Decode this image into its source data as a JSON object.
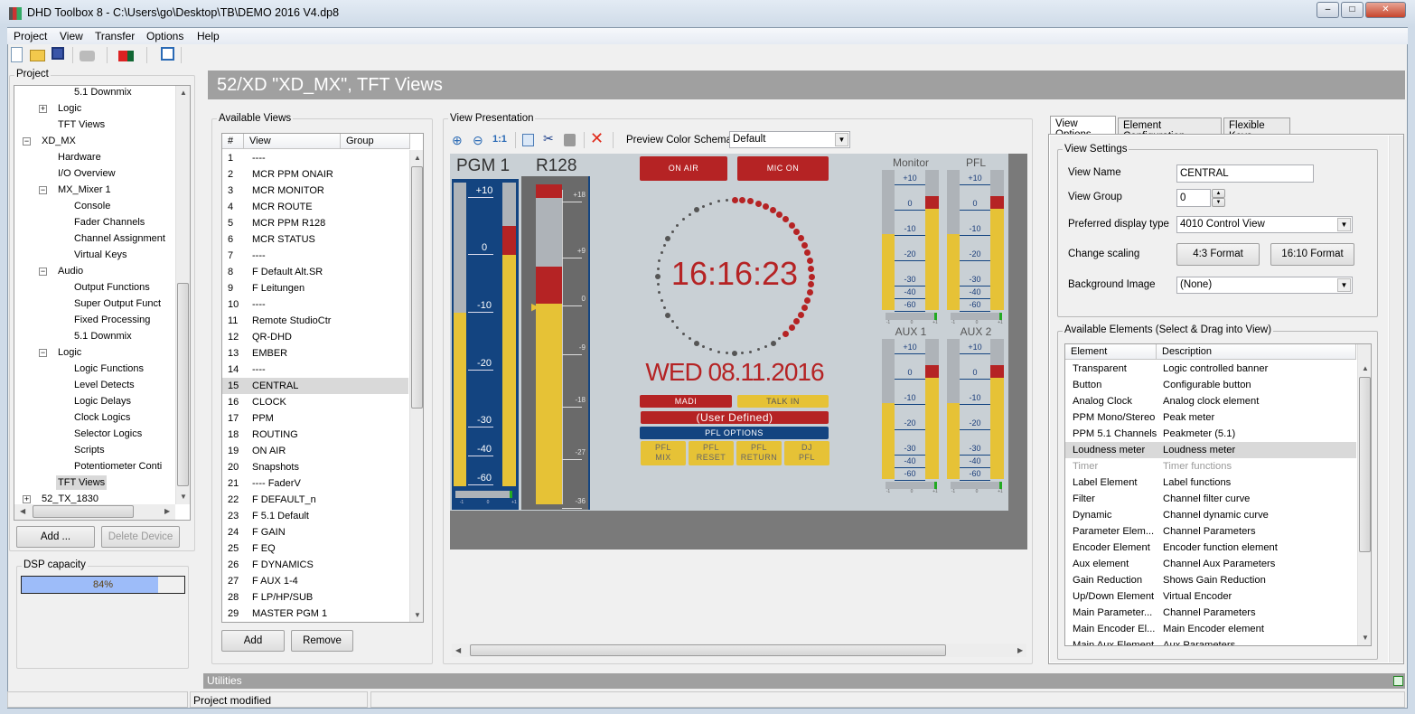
{
  "window": {
    "title": "DHD Toolbox 8 - C:\\Users\\go\\Desktop\\TB\\DEMO 2016 V4.dp8",
    "min": "‒",
    "max": "□",
    "close": "✕"
  },
  "menu": [
    {
      "label": "Project"
    },
    {
      "label": "View"
    },
    {
      "label": "Transfer"
    },
    {
      "label": "Options"
    },
    {
      "label": "Help"
    }
  ],
  "toolbar": {
    "icons": [
      "new-file-icon",
      "open-folder-icon",
      "save-icon",
      "print-icon",
      "device-icon",
      "view-icon"
    ]
  },
  "project": {
    "label": "Project",
    "tree": [
      {
        "label": "5.1 Downmix",
        "level": 3
      },
      {
        "label": "Logic",
        "level": 2,
        "toggle": "+"
      },
      {
        "label": "TFT Views",
        "level": 2
      },
      {
        "label": "XD_MX",
        "level": 1,
        "toggle": "−"
      },
      {
        "label": "Hardware",
        "level": 2
      },
      {
        "label": "I/O Overview",
        "level": 2
      },
      {
        "label": "MX_Mixer 1",
        "level": 2,
        "toggle": "−"
      },
      {
        "label": "Console",
        "level": 3
      },
      {
        "label": "Fader Channels",
        "level": 3
      },
      {
        "label": "Channel Assignment",
        "level": 3
      },
      {
        "label": "Virtual Keys",
        "level": 3
      },
      {
        "label": "Audio",
        "level": 2,
        "toggle": "−"
      },
      {
        "label": "Output Functions",
        "level": 3
      },
      {
        "label": "Super Output Funct",
        "level": 3
      },
      {
        "label": "Fixed Processing",
        "level": 3
      },
      {
        "label": "5.1 Downmix",
        "level": 3
      },
      {
        "label": "Logic",
        "level": 2,
        "toggle": "−"
      },
      {
        "label": "Logic Functions",
        "level": 3
      },
      {
        "label": "Level Detects",
        "level": 3
      },
      {
        "label": "Logic Delays",
        "level": 3
      },
      {
        "label": "Clock Logics",
        "level": 3
      },
      {
        "label": "Selector Logics",
        "level": 3
      },
      {
        "label": "Scripts",
        "level": 3
      },
      {
        "label": "Potentiometer Conti",
        "level": 3
      },
      {
        "label": "TFT Views",
        "level": 2,
        "selected": true
      },
      {
        "label": "52_TX_1830",
        "level": 1,
        "toggle": "+"
      }
    ],
    "add_label": "Add ...",
    "delete_label": "Delete Device"
  },
  "dsp": {
    "label": "DSP capacity",
    "value_text": "84%",
    "value": 84
  },
  "header": {
    "title": "52/XD \"XD_MX\", TFT Views"
  },
  "views": {
    "label": "Available Views",
    "columns": [
      "#",
      "View",
      "Group"
    ],
    "rows": [
      [
        "1",
        "----"
      ],
      [
        "2",
        "MCR PPM ONAIR"
      ],
      [
        "3",
        "MCR MONITOR"
      ],
      [
        "4",
        "MCR ROUTE"
      ],
      [
        "5",
        "MCR PPM  R128"
      ],
      [
        "6",
        "MCR STATUS"
      ],
      [
        "7",
        "----"
      ],
      [
        "8",
        "F Default Alt.SR"
      ],
      [
        "9",
        "F Leitungen"
      ],
      [
        "10",
        "----"
      ],
      [
        "11",
        "Remote StudioCtr"
      ],
      [
        "12",
        "QR-DHD"
      ],
      [
        "13",
        "EMBER"
      ],
      [
        "14",
        "----"
      ],
      [
        "15",
        "CENTRAL"
      ],
      [
        "16",
        "CLOCK"
      ],
      [
        "17",
        "PPM"
      ],
      [
        "18",
        "ROUTING"
      ],
      [
        "19",
        "ON AIR"
      ],
      [
        "20",
        "Snapshots"
      ],
      [
        "21",
        "---- FaderV"
      ],
      [
        "22",
        "F DEFAULT_n"
      ],
      [
        "23",
        "F 5.1 Default"
      ],
      [
        "24",
        "F GAIN"
      ],
      [
        "25",
        "F EQ"
      ],
      [
        "26",
        "F DYNAMICS"
      ],
      [
        "27",
        "F AUX 1-4"
      ],
      [
        "28",
        "F LP/HP/SUB"
      ],
      [
        "29",
        "MASTER PGM 1"
      ]
    ],
    "selected": "15",
    "add_label": "Add",
    "remove_label": "Remove"
  },
  "presentation": {
    "label": "View Presentation",
    "schema_label": "Preview Color Schema:",
    "schema_value": "Default",
    "tools": [
      "zoom-in-icon",
      "zoom-out-icon",
      "zoom-reset-icon",
      "copy-icon",
      "cut-icon",
      "paste-icon",
      "delete-icon"
    ]
  },
  "tft": {
    "pgm_label": "PGM 1",
    "r128_label": "R128",
    "ppm_scale": [
      "+10",
      "0",
      "-10",
      "-20",
      "-30",
      "-40",
      "-60"
    ],
    "r128_scale": [
      "+18",
      "+9",
      "0",
      "-9",
      "-18",
      "-27",
      "-36"
    ],
    "balance_scale": [
      "-1",
      "0",
      "+1"
    ],
    "on_air": "ON AIR",
    "mic_on": "MIC ON",
    "time": "16:16:23",
    "seconds": 23,
    "date": "WED 08.11.2016",
    "madi": "MADI",
    "talk_in": "TALK IN",
    "user_defined": "(User Defined)",
    "pfl_options": "PFL OPTIONS",
    "pfl_buttons": [
      "PFL\nMIX",
      "PFL\nRESET",
      "PFL\nRETURN",
      "DJ\nPFL"
    ],
    "small_meters": [
      "Monitor",
      "PFL",
      "AUX 1",
      "AUX 2"
    ],
    "colors": {
      "red": "#b52324",
      "yellow": "#e6c236",
      "blue": "#134480",
      "bg": "#c9d0d5"
    }
  },
  "tabs": [
    {
      "label": "View Options",
      "active": true
    },
    {
      "label": "Element Configuration"
    },
    {
      "label": "Flexible Keys"
    }
  ],
  "view_settings": {
    "label": "View Settings",
    "view_name_label": "View Name",
    "view_name": "CENTRAL",
    "view_group_label": "View Group",
    "view_group": "0",
    "display_type_label": "Preferred display type",
    "display_type": "4010 Control View",
    "scaling_label": "Change scaling",
    "format43": "4:3 Format",
    "format1610": "16:10 Format",
    "bg_image_label": "Background Image",
    "bg_image": "(None)"
  },
  "elements": {
    "label": "Available Elements (Select & Drag into View)",
    "columns": [
      "Element",
      "Description"
    ],
    "rows": [
      [
        "Transparent",
        "Logic controlled banner"
      ],
      [
        "Button",
        "Configurable button"
      ],
      [
        "Analog Clock",
        "Analog clock element"
      ],
      [
        "PPM Mono/Stereo",
        "Peak meter"
      ],
      [
        "PPM 5.1 Channels",
        "Peakmeter (5.1)"
      ],
      [
        "Loudness meter",
        "Loudness meter"
      ],
      [
        "Timer",
        "Timer functions"
      ],
      [
        "Label Element",
        "Label functions"
      ],
      [
        "Filter",
        "Channel filter curve"
      ],
      [
        "Dynamic",
        "Channel dynamic curve"
      ],
      [
        "Parameter Elem...",
        "Channel Parameters"
      ],
      [
        "Encoder Element",
        "Encoder function element"
      ],
      [
        "Aux element",
        "Channel Aux Parameters"
      ],
      [
        "Gain Reduction",
        "Shows Gain Reduction"
      ],
      [
        "Up/Down Element",
        "Virtual Encoder"
      ],
      [
        "Main Parameter...",
        "Channel Parameters"
      ],
      [
        "Main Encoder El...",
        "Main Encoder element"
      ],
      [
        "Main Aux Element",
        "Aux Parameters"
      ]
    ],
    "selected": "Loudness meter",
    "disabled": [
      "Timer"
    ]
  },
  "utilities": {
    "label": "Utilities"
  },
  "status": {
    "text": "Project modified"
  }
}
